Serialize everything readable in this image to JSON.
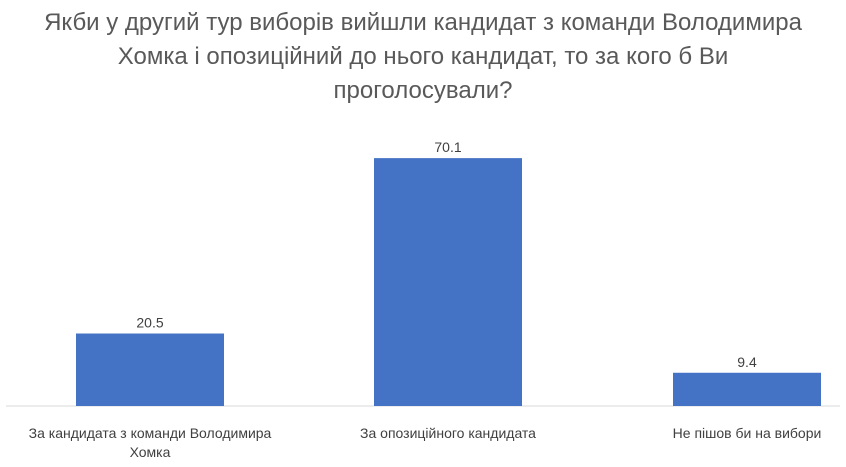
{
  "chart_data": {
    "type": "bar",
    "title": "Якби у другий тур виборів вийшли кандидат з команди Володимира Хомка і опозиційний до нього кандидат, то за кого б Ви проголосували?",
    "categories": [
      [
        "За кандидата з команди Володимира",
        "Хомка"
      ],
      [
        "За опозиційного кандидата"
      ],
      [
        "Не пішов би на вибори"
      ]
    ],
    "values": [
      20.5,
      70.1,
      9.4
    ],
    "data_labels": [
      "20.5",
      "70.1",
      "9.4"
    ],
    "xlabel": "",
    "ylabel": "",
    "ylim": [
      0,
      80
    ],
    "grid": false,
    "legend": "none",
    "bar_color": "#4472C4",
    "axis_color": "#D9D9D9"
  }
}
